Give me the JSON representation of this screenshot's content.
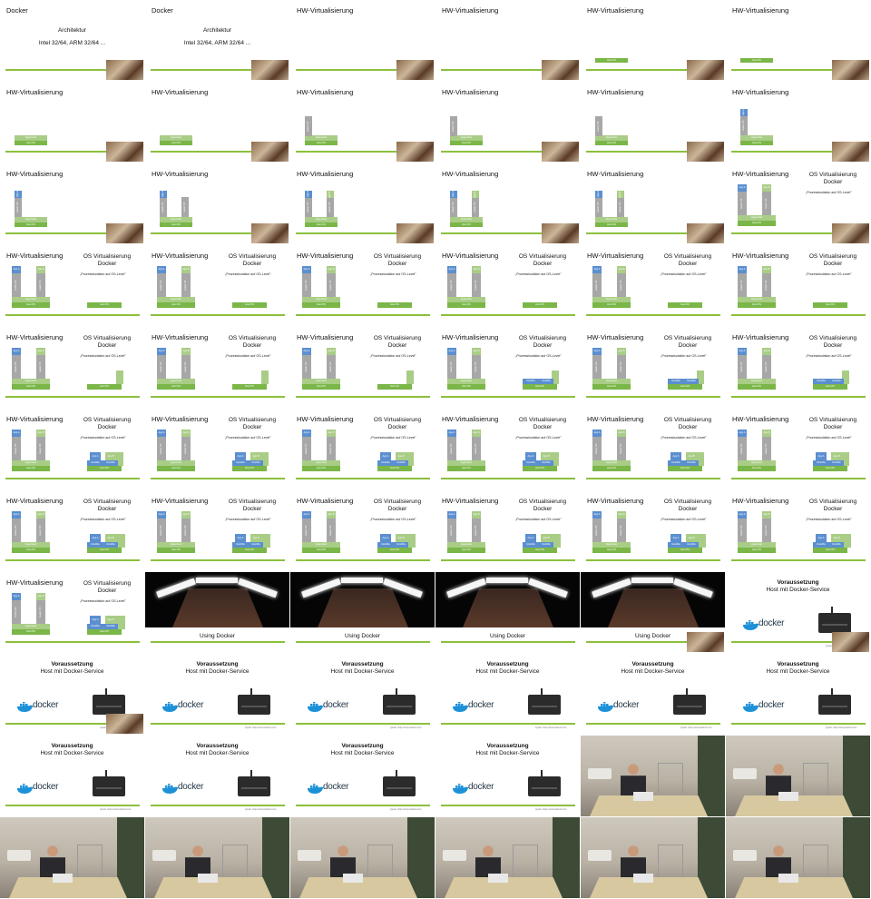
{
  "tiles": [
    {
      "type": "arch",
      "title": "Docker",
      "line1": "Architektur",
      "line2": "Intel 32/64, ARM 32/64 ...",
      "thumb": true
    },
    {
      "type": "arch",
      "title": "Docker",
      "line1": "Architektur",
      "line2": "Intel 32/64, ARM 32/64 ...",
      "thumb": true
    },
    {
      "type": "hw",
      "title": "HW-Virtualisierung",
      "stage": 0,
      "thumb": true
    },
    {
      "type": "hw",
      "title": "HW-Virtualisierung",
      "stage": 0,
      "thumb": true
    },
    {
      "type": "hw",
      "title": "HW-Virtualisierung",
      "stage": 1,
      "thumb": true
    },
    {
      "type": "hw",
      "title": "HW-Virtualisierung",
      "stage": 1,
      "thumb": true
    },
    {
      "type": "hw",
      "title": "HW-Virtualisierung",
      "stage": 2,
      "thumb": true
    },
    {
      "type": "hw",
      "title": "HW-Virtualisierung",
      "stage": 2,
      "thumb": true
    },
    {
      "type": "hw",
      "title": "HW-Virtualisierung",
      "stage": 3,
      "thumb": true
    },
    {
      "type": "hw",
      "title": "HW-Virtualisierung",
      "stage": 3,
      "thumb": true
    },
    {
      "type": "hw",
      "title": "HW-Virtualisierung",
      "stage": 3,
      "thumb": true
    },
    {
      "type": "hw",
      "title": "HW-Virtualisierung",
      "stage": 4,
      "thumb": true
    },
    {
      "type": "hw",
      "title": "HW-Virtualisierung",
      "stage": 4,
      "thumb": true
    },
    {
      "type": "hw",
      "title": "HW-Virtualisierung",
      "stage": 5,
      "thumb": true
    },
    {
      "type": "hw",
      "title": "HW-Virtualisierung",
      "stage": 6,
      "thumb": true
    },
    {
      "type": "hw",
      "title": "HW-Virtualisierung",
      "stage": 6,
      "thumb": true
    },
    {
      "type": "hw",
      "title": "HW-Virtualisierung",
      "stage": 6,
      "thumb": true
    },
    {
      "type": "os",
      "title": "HW-Virtualisierung",
      "osStage": 0,
      "thumb": true
    },
    {
      "type": "os",
      "title": "HW-Virtualisierung",
      "osStage": 1,
      "thumb": false
    },
    {
      "type": "os",
      "title": "HW-Virtualisierung",
      "osStage": 1,
      "thumb": false
    },
    {
      "type": "os",
      "title": "HW-Virtualisierung",
      "osStage": 1,
      "thumb": false
    },
    {
      "type": "os",
      "title": "HW-Virtualisierung",
      "osStage": 1,
      "thumb": false
    },
    {
      "type": "os",
      "title": "HW-Virtualisierung",
      "osStage": 1,
      "thumb": false
    },
    {
      "type": "os",
      "title": "HW-Virtualisierung",
      "osStage": 1,
      "thumb": false
    },
    {
      "type": "os",
      "title": "HW-Virtualisierung",
      "osStage": 2,
      "thumb": false
    },
    {
      "type": "os",
      "title": "HW-Virtualisierung",
      "osStage": 2,
      "thumb": false
    },
    {
      "type": "os",
      "title": "HW-Virtualisierung",
      "osStage": 2,
      "thumb": false
    },
    {
      "type": "os",
      "title": "HW-Virtualisierung",
      "osStage": 3,
      "thumb": false
    },
    {
      "type": "os",
      "title": "HW-Virtualisierung",
      "osStage": 3,
      "thumb": false
    },
    {
      "type": "os",
      "title": "HW-Virtualisierung",
      "osStage": 3,
      "thumb": false
    },
    {
      "type": "os",
      "title": "HW-Virtualisierung",
      "osStage": 4,
      "thumb": false
    },
    {
      "type": "os",
      "title": "HW-Virtualisierung",
      "osStage": 4,
      "thumb": false
    },
    {
      "type": "os",
      "title": "HW-Virtualisierung",
      "osStage": 4,
      "thumb": false
    },
    {
      "type": "os",
      "title": "HW-Virtualisierung",
      "osStage": 4,
      "thumb": false
    },
    {
      "type": "os",
      "title": "HW-Virtualisierung",
      "osStage": 4,
      "thumb": false
    },
    {
      "type": "os",
      "title": "HW-Virtualisierung",
      "osStage": 4,
      "thumb": false
    },
    {
      "type": "os",
      "title": "HW-Virtualisierung",
      "osStage": 5,
      "thumb": false
    },
    {
      "type": "os",
      "title": "HW-Virtualisierung",
      "osStage": 5,
      "thumb": false
    },
    {
      "type": "os",
      "title": "HW-Virtualisierung",
      "osStage": 5,
      "thumb": false
    },
    {
      "type": "os",
      "title": "HW-Virtualisierung",
      "osStage": 5,
      "thumb": false
    },
    {
      "type": "os",
      "title": "HW-Virtualisierung",
      "osStage": 5,
      "thumb": false
    },
    {
      "type": "os",
      "title": "HW-Virtualisierung",
      "osStage": 5,
      "thumb": false
    },
    {
      "type": "os",
      "title": "HW-Virtualisierung",
      "osStage": 5,
      "thumb": false
    },
    {
      "type": "using",
      "label": "Using Docker",
      "thumb": false
    },
    {
      "type": "using",
      "label": "Using Docker",
      "thumb": false
    },
    {
      "type": "using",
      "label": "Using Docker",
      "thumb": false
    },
    {
      "type": "using",
      "label": "Using Docker",
      "thumb": true
    },
    {
      "type": "vor",
      "bold": "Voraussetzung",
      "line": "Host mit Docker-Service",
      "thumb": true
    },
    {
      "type": "vor",
      "bold": "Voraussetzung",
      "line": "Host mit Docker-Service",
      "thumb": true
    },
    {
      "type": "vor",
      "bold": "Voraussetzung",
      "line": "Host mit Docker-Service",
      "thumb": false
    },
    {
      "type": "vor",
      "bold": "Voraussetzung",
      "line": "Host mit Docker-Service",
      "thumb": false
    },
    {
      "type": "vor",
      "bold": "Voraussetzung",
      "line": "Host mit Docker-Service",
      "thumb": false
    },
    {
      "type": "vor",
      "bold": "Voraussetzung",
      "line": "Host mit Docker-Service",
      "thumb": false
    },
    {
      "type": "vor",
      "bold": "Voraussetzung",
      "line": "Host mit Docker-Service",
      "thumb": false
    },
    {
      "type": "vor",
      "bold": "Voraussetzung",
      "line": "Host mit Docker-Service",
      "thumb": false
    },
    {
      "type": "vor",
      "bold": "Voraussetzung",
      "line": "Host mit Docker-Service",
      "thumb": false
    },
    {
      "type": "vor",
      "bold": "Voraussetzung",
      "line": "Host mit Docker-Service",
      "thumb": false
    },
    {
      "type": "vor",
      "bold": "Voraussetzung",
      "line": "Host mit Docker-Service",
      "thumb": false
    },
    {
      "type": "photo"
    },
    {
      "type": "photo"
    },
    {
      "type": "photo"
    },
    {
      "type": "photo"
    },
    {
      "type": "photo"
    },
    {
      "type": "photo"
    },
    {
      "type": "photo"
    },
    {
      "type": "photo"
    }
  ],
  "strings": {
    "os_title": "OS Virtualisierung",
    "os_sub": "Docker",
    "quote": "„Prozessisolation auf OS-Level\"",
    "host_os": "Host OS",
    "hypervisor": "Hypervisor",
    "guest_os": "Guest OS",
    "app_a": "App A",
    "app_b": "App B",
    "bins": "bins/libs",
    "docker_word": "docker",
    "quelle": "Quelle: https://www.stationit.com"
  },
  "colors": {
    "accent_green": "#8bc03d",
    "app_blue": "#5b8fd0",
    "guest_gray": "#a7a7a7",
    "hyper_green": "#a9cd86",
    "host_green": "#7ab648"
  }
}
